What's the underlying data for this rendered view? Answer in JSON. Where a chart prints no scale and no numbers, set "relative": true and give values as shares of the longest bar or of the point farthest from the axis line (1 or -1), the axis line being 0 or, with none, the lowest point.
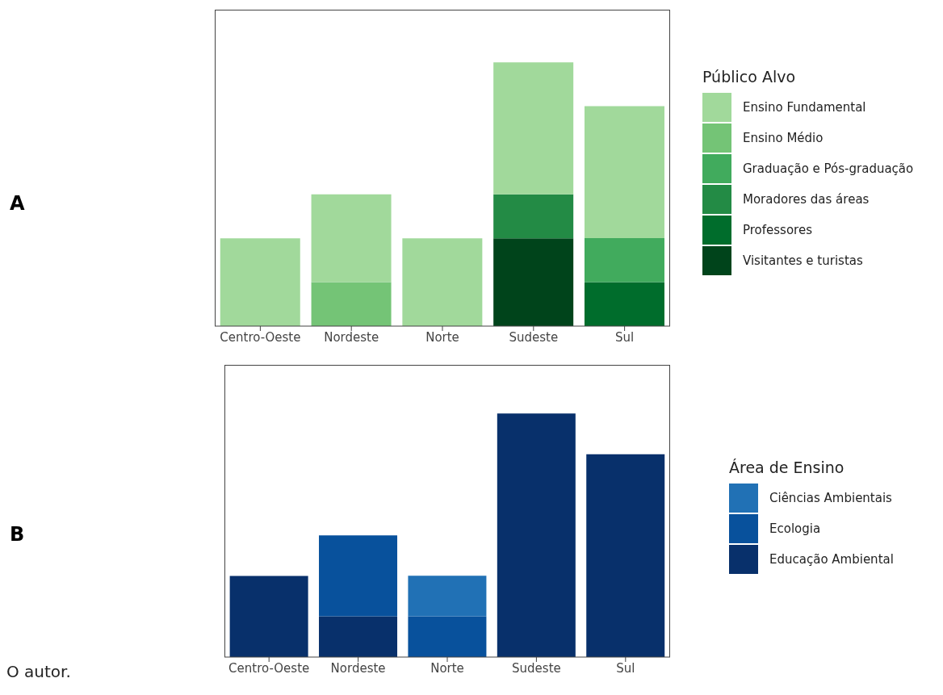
{
  "chart_data": [
    {
      "type": "bar",
      "stacked": true,
      "relative": true,
      "legend_title": "Público Alvo",
      "legend": "right",
      "categories": [
        "Centro-Oeste",
        "Nordeste",
        "Norte",
        "Sudeste",
        "Sul"
      ],
      "annotations": [
        "A"
      ],
      "series": [
        {
          "name": "Visitantes e turistas",
          "color": "#00441b",
          "values": [
            null,
            null,
            null,
            0.333,
            null
          ]
        },
        {
          "name": "Professores",
          "color": "#006d2c",
          "values": [
            null,
            null,
            null,
            null,
            0.167
          ]
        },
        {
          "name": "Moradores das áreas",
          "color": "#238b45",
          "values": [
            null,
            null,
            null,
            0.167,
            null
          ]
        },
        {
          "name": "Graduação e Pós-graduação",
          "color": "#41ab5d",
          "values": [
            null,
            null,
            null,
            null,
            0.167
          ]
        },
        {
          "name": "Ensino Médio",
          "color": "#74c476",
          "values": [
            null,
            0.167,
            null,
            null,
            null
          ]
        },
        {
          "name": "Ensino Fundamental",
          "color": "#a1d99b",
          "values": [
            0.333,
            0.333,
            0.333,
            0.5,
            0.5
          ]
        }
      ]
    },
    {
      "type": "bar",
      "stacked": true,
      "relative": true,
      "legend_title": "Área de Ensino",
      "legend": "right",
      "categories": [
        "Centro-Oeste",
        "Nordeste",
        "Norte",
        "Sudeste",
        "Sul"
      ],
      "annotations": [
        "B",
        "O autor."
      ],
      "series": [
        {
          "name": "Educação Ambiental",
          "color": "#08306b",
          "values": [
            0.333,
            0.167,
            null,
            1,
            0.833
          ]
        },
        {
          "name": "Ecologia",
          "color": "#08519c",
          "values": [
            null,
            0.333,
            0.167,
            null,
            null
          ]
        },
        {
          "name": "Ciências Ambientais",
          "color": "#2171b5",
          "values": [
            null,
            null,
            0.167,
            null,
            null
          ]
        }
      ]
    }
  ]
}
